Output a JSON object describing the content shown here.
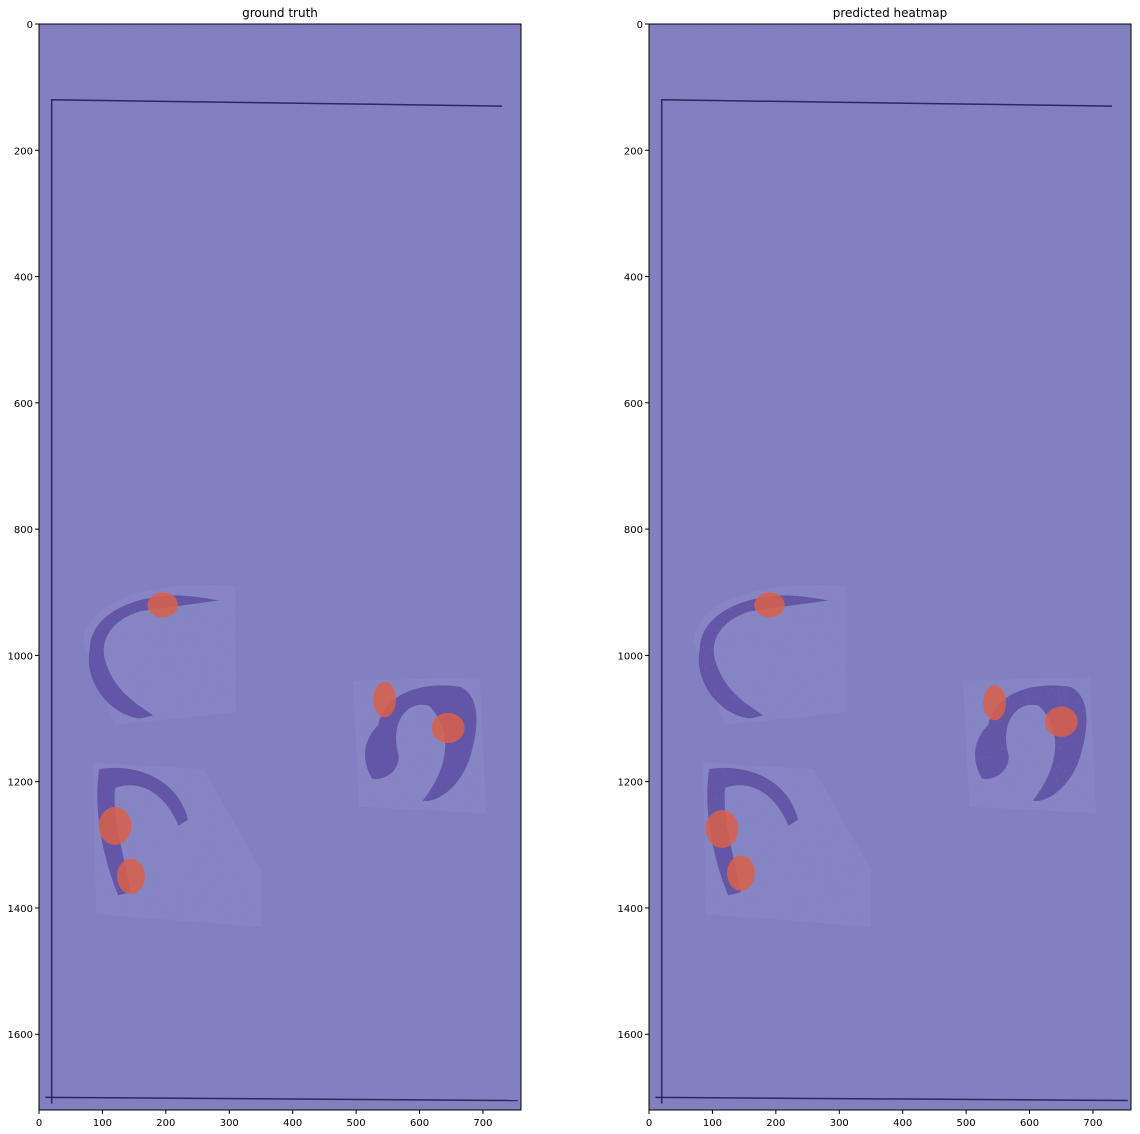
{
  "figure": {
    "background": "#ffffff",
    "overlay_color": "#8080c0",
    "tissue_color": "#5a4aa0",
    "tumor_color": "#d8604a",
    "hot_colors": [
      "#ffff60",
      "#60e0ff",
      "#ff8040"
    ]
  },
  "chart_data": [
    {
      "type": "heatmap",
      "title": "ground truth",
      "xlim": [
        0,
        760
      ],
      "ylim": [
        1720,
        0
      ],
      "xticks": [
        0,
        100,
        200,
        300,
        400,
        500,
        600,
        700
      ],
      "yticks": [
        0,
        200,
        400,
        600,
        800,
        1000,
        1200,
        1400,
        1600
      ],
      "grid": false,
      "tissue_sections": [
        {
          "name": "section-top-left",
          "center": [
            180,
            1000
          ]
        },
        {
          "name": "section-right",
          "center": [
            585,
            1140
          ]
        },
        {
          "name": "section-bottom-left",
          "center": [
            160,
            1280
          ]
        }
      ],
      "tumor_regions": [
        {
          "name": "tumor-1",
          "center": [
            195,
            920
          ]
        },
        {
          "name": "tumor-2",
          "center": [
            545,
            1070
          ]
        },
        {
          "name": "tumor-3",
          "center": [
            645,
            1115
          ]
        },
        {
          "name": "tumor-4",
          "center": [
            120,
            1270
          ]
        },
        {
          "name": "tumor-5",
          "center": [
            145,
            1350
          ]
        }
      ]
    },
    {
      "type": "heatmap",
      "title": "predicted heatmap",
      "xlim": [
        0,
        760
      ],
      "ylim": [
        1720,
        0
      ],
      "xticks": [
        0,
        100,
        200,
        300,
        400,
        500,
        600,
        700
      ],
      "yticks": [
        0,
        200,
        400,
        600,
        800,
        1000,
        1200,
        1400,
        1600
      ],
      "grid": false,
      "tissue_sections": [
        {
          "name": "section-top-left",
          "center": [
            180,
            1000
          ]
        },
        {
          "name": "section-right",
          "center": [
            585,
            1140
          ]
        },
        {
          "name": "section-bottom-left",
          "center": [
            160,
            1280
          ]
        }
      ],
      "tumor_regions": [
        {
          "name": "tumor-1",
          "center": [
            190,
            920
          ]
        },
        {
          "name": "tumor-2",
          "center": [
            545,
            1075
          ]
        },
        {
          "name": "tumor-3",
          "center": [
            650,
            1105
          ]
        },
        {
          "name": "tumor-4",
          "center": [
            115,
            1275
          ]
        },
        {
          "name": "tumor-5",
          "center": [
            145,
            1345
          ]
        }
      ]
    }
  ]
}
